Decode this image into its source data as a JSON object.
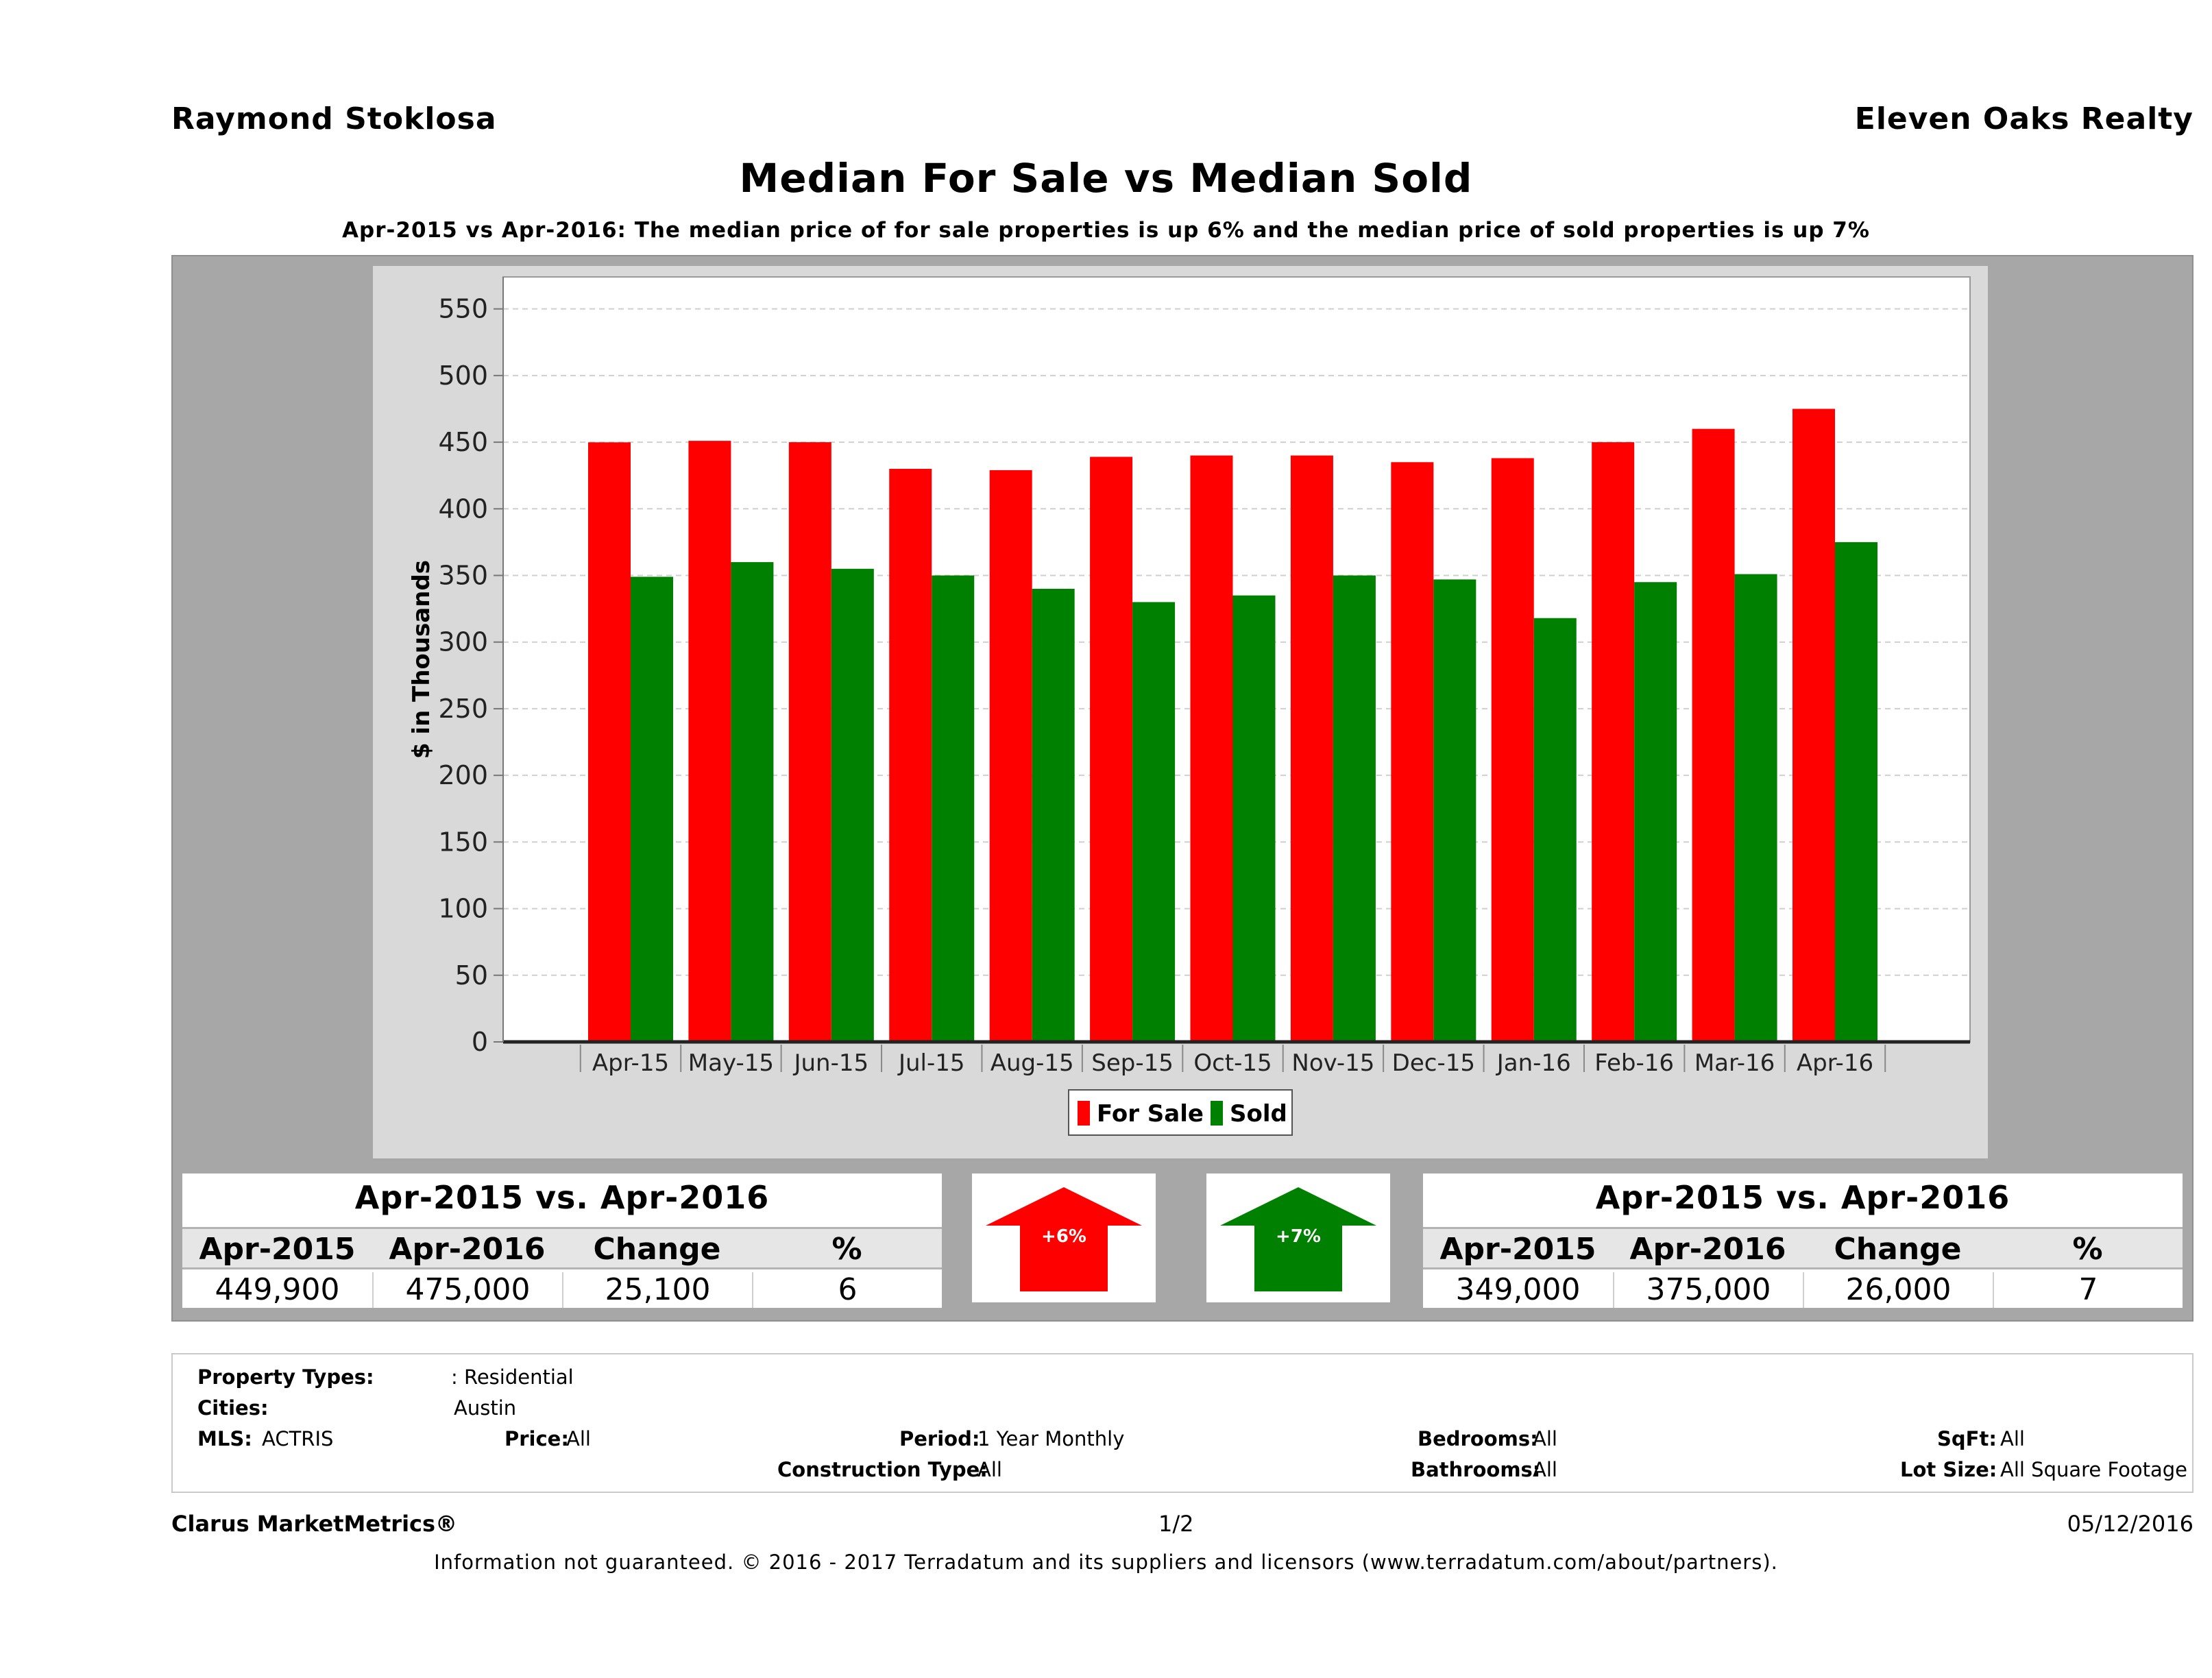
{
  "header": {
    "agent": "Raymond Stoklosa",
    "brokerage": "Eleven Oaks Realty",
    "title": "Median For Sale vs Median Sold",
    "subtitle": "Apr-2015 vs Apr-2016: The median price of for sale properties is up 6% and the median price of sold properties is up 7%"
  },
  "chart_data": {
    "type": "bar",
    "ylabel": "$ in Thousands",
    "ylim": [
      0,
      550
    ],
    "yticks": [
      0,
      50,
      100,
      150,
      200,
      250,
      300,
      350,
      400,
      450,
      500,
      550
    ],
    "grid": true,
    "legend_position": "bottom-center",
    "categories": [
      "Apr-15",
      "May-15",
      "Jun-15",
      "Jul-15",
      "Aug-15",
      "Sep-15",
      "Oct-15",
      "Nov-15",
      "Dec-15",
      "Jan-16",
      "Feb-16",
      "Mar-16",
      "Apr-16"
    ],
    "series": [
      {
        "name": "For Sale",
        "color": "#ff0000",
        "values": [
          449.9,
          451,
          450,
          430,
          429,
          439,
          440,
          440,
          435,
          438,
          450,
          460,
          475
        ]
      },
      {
        "name": "Sold",
        "color": "#008000",
        "values": [
          349,
          360,
          355,
          350,
          340,
          330,
          335,
          350,
          347,
          318,
          345,
          351,
          375
        ]
      }
    ]
  },
  "for_sale_summary": {
    "title": "Apr-2015 vs. Apr-2016",
    "headers": [
      "Apr-2015",
      "Apr-2016",
      "Change",
      "%"
    ],
    "values": [
      "449,900",
      "475,000",
      "25,100",
      "6"
    ],
    "badge": "+6%",
    "direction": "up",
    "color": "#ff0000"
  },
  "sold_summary": {
    "title": "Apr-2015 vs. Apr-2016",
    "headers": [
      "Apr-2015",
      "Apr-2016",
      "Change",
      "%"
    ],
    "values": [
      "349,000",
      "375,000",
      "26,000",
      "7"
    ],
    "badge": "+7%",
    "direction": "up",
    "color": "#008000"
  },
  "criteria": {
    "property_types_label": "Property Types:",
    "property_types_value": ": Residential",
    "cities_label": "Cities:",
    "cities_value": "Austin",
    "mls_label": "MLS:",
    "mls_value": "ACTRIS",
    "price_label": "Price:",
    "price_value": "All",
    "period_label": "Period:",
    "period_value": "1 Year Monthly",
    "construction_label": "Construction Type:",
    "construction_value": "All",
    "bedrooms_label": "Bedrooms:",
    "bedrooms_value": "All",
    "bathrooms_label": "Bathrooms:",
    "bathrooms_value": "All",
    "sqft_label": "SqFt:",
    "sqft_value": "All",
    "lot_label": "Lot Size:",
    "lot_value": "All Square Footage"
  },
  "footer": {
    "brand": "Clarus MarketMetrics®",
    "page": "1/2",
    "date": "05/12/2016",
    "disclaimer": "Information not guaranteed. © 2016 - 2017 Terradatum and its suppliers and licensors (www.terradatum.com/about/partners)."
  }
}
